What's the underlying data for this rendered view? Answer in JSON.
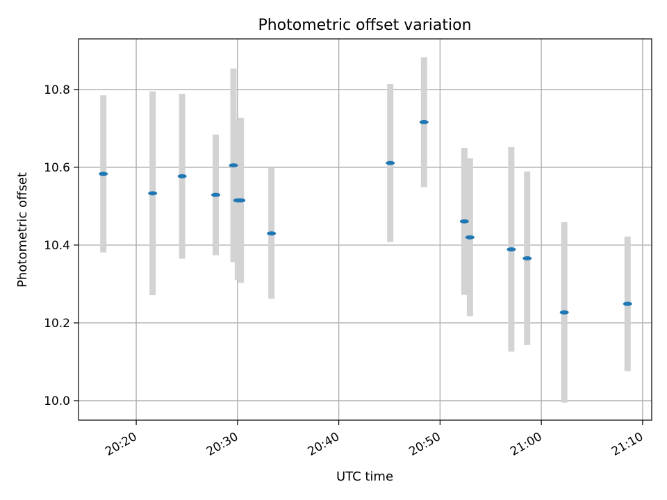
{
  "chart_data": {
    "type": "scatter",
    "title": "Photometric offset variation",
    "xlabel": "UTC time",
    "ylabel": "Photometric offset",
    "x_ticks": [
      "20:20",
      "20:30",
      "20:40",
      "20:50",
      "21:00",
      "21:10"
    ],
    "x_tick_minutes": [
      20,
      30,
      40,
      50,
      60,
      70
    ],
    "xlim_minutes": [
      14.3,
      70.9
    ],
    "ylim": [
      9.95,
      10.93
    ],
    "y_ticks": [
      10.0,
      10.2,
      10.4,
      10.6,
      10.8
    ],
    "grid": true,
    "colors": {
      "point": "#1f77b4",
      "errorbar": "#d3d3d3",
      "grid": "#b0b0b0"
    },
    "points": [
      {
        "time": "20:16:45",
        "y": 10.583,
        "yerr": 0.202
      },
      {
        "time": "20:21:37",
        "y": 10.533,
        "yerr": 0.262
      },
      {
        "time": "20:24:32",
        "y": 10.577,
        "yerr": 0.212
      },
      {
        "time": "20:27:51",
        "y": 10.529,
        "yerr": 0.155
      },
      {
        "time": "20:29:36",
        "y": 10.605,
        "yerr": 0.249
      },
      {
        "time": "20:30:02",
        "y": 10.515,
        "yerr": 0.205
      },
      {
        "time": "20:30:20",
        "y": 10.515,
        "yerr": 0.212
      },
      {
        "time": "20:33:21",
        "y": 10.43,
        "yerr": 0.168
      },
      {
        "time": "20:45:05",
        "y": 10.611,
        "yerr": 0.203
      },
      {
        "time": "20:48:25",
        "y": 10.716,
        "yerr": 0.167
      },
      {
        "time": "20:52:24",
        "y": 10.461,
        "yerr": 0.189
      },
      {
        "time": "20:52:57",
        "y": 10.42,
        "yerr": 0.203
      },
      {
        "time": "20:57:02",
        "y": 10.389,
        "yerr": 0.263
      },
      {
        "time": "20:58:36",
        "y": 10.366,
        "yerr": 0.223
      },
      {
        "time": "21:02:16",
        "y": 10.227,
        "yerr": 0.232
      },
      {
        "time": "21:08:31",
        "y": 10.249,
        "yerr": 0.173
      }
    ]
  }
}
